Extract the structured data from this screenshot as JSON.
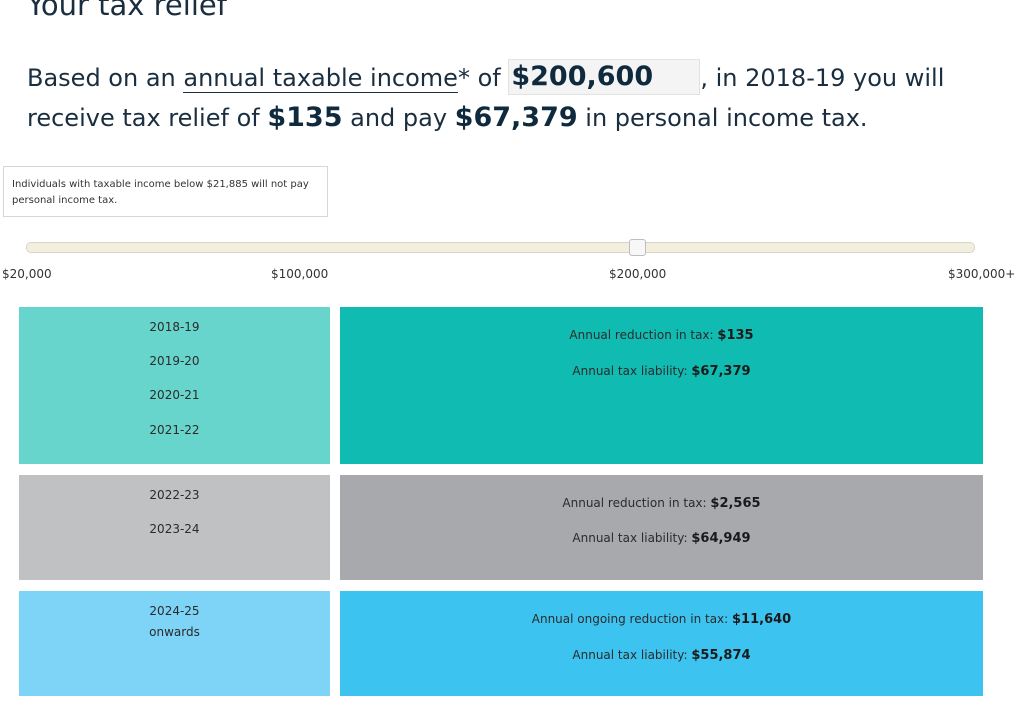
{
  "heading": "Your tax relief",
  "summary": {
    "part1": "Based on an ",
    "link": "annual taxable income",
    "part2": "* of ",
    "income_value": "$200,600",
    "part3": ", in 2018-19 you will receive tax relief of ",
    "relief": "$135",
    "part4": " and pay ",
    "tax": "$67,379",
    "part5": " in personal income tax."
  },
  "tooltip": "Individuals with taxable income below $21,885 will not pay personal income tax.",
  "slider": {
    "value_fraction": 0.64,
    "ticks": [
      "$20,000",
      "$100,000",
      "$200,000",
      "$300,000+"
    ]
  },
  "periods": [
    {
      "years": [
        "2018-19",
        "2019-20",
        "2020-21",
        "2021-22"
      ],
      "reduction_label": "Annual reduction in tax:",
      "reduction_value": "$135",
      "liability_label": "Annual tax liability:",
      "liability_value": "$67,379"
    },
    {
      "years": [
        "2022-23",
        "2023-24"
      ],
      "reduction_label": "Annual reduction in tax:",
      "reduction_value": "$2,565",
      "liability_label": "Annual tax liability:",
      "liability_value": "$64,949"
    },
    {
      "years": [
        "2024-25",
        "onwards"
      ],
      "reduction_label": "Annual ongoing reduction in tax:",
      "reduction_value": "$11,640",
      "liability_label": "Annual tax liability:",
      "liability_value": "$55,874"
    }
  ],
  "colors": {
    "period1_years": "#68d5cd",
    "period1_details": "#10bbb1",
    "period2_years": "#c0c1c3",
    "period2_details": "#a8a9ad",
    "period3_years": "#7dd4f7",
    "period3_details": "#3dc3f0",
    "slider_track": "#f3efdf"
  }
}
